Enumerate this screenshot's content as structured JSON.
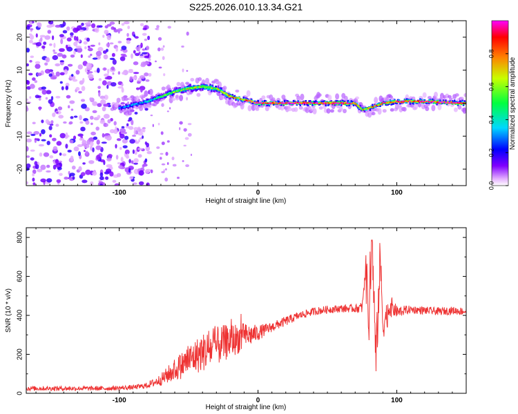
{
  "title": "S225.2026.010.13.34.G21",
  "chart_data": [
    {
      "type": "heatmap",
      "name": "spectrogram",
      "xlabel": "Height of straight line (km)",
      "ylabel": "Frequency (Hz)",
      "xlim": [
        -167,
        150
      ],
      "ylim": [
        -25,
        25
      ],
      "xticks": [
        -100,
        0,
        100
      ],
      "yticks": [
        -20,
        -10,
        0,
        10,
        20
      ],
      "colorbar": {
        "label": "Normalized spectral amplitude",
        "range": [
          0,
          1
        ],
        "ticks": [
          0.0,
          0.2,
          0.4,
          0.6,
          0.8
        ]
      },
      "ridge": {
        "x": [
          -100,
          -90,
          -80,
          -70,
          -60,
          -50,
          -40,
          -30,
          -20,
          -10,
          0,
          20,
          40,
          60,
          70,
          75,
          80,
          90,
          100,
          120,
          150
        ],
        "freq": [
          -1.5,
          -0.5,
          0.5,
          2,
          3.5,
          4.5,
          5,
          4.5,
          2,
          1,
          0,
          0,
          0,
          0,
          0,
          -2,
          -1.5,
          0,
          0.5,
          0.5,
          0
        ],
        "amplitude": [
          0.25,
          0.3,
          0.35,
          0.45,
          0.55,
          0.6,
          0.65,
          0.6,
          0.7,
          0.8,
          0.9,
          0.95,
          0.95,
          0.95,
          0.9,
          0.7,
          0.75,
          0.85,
          0.9,
          0.95,
          0.95
        ]
      },
      "noise_region_x": [
        -167,
        -78
      ]
    },
    {
      "type": "line",
      "name": "snr",
      "xlabel": "Height of straight line (km)",
      "ylabel": "SNR (10 * v/v)",
      "xlim": [
        -167,
        150
      ],
      "ylim": [
        0,
        850
      ],
      "xticks": [
        -100,
        0,
        100
      ],
      "yticks": [
        0,
        200,
        400,
        600,
        800
      ],
      "color": "#ee3333",
      "series": [
        {
          "name": "SNR",
          "x": [
            -167,
            -140,
            -110,
            -90,
            -80,
            -70,
            -60,
            -50,
            -40,
            -30,
            -20,
            -10,
            0,
            10,
            20,
            30,
            40,
            50,
            60,
            70,
            75,
            78,
            80,
            82,
            85,
            88,
            90,
            95,
            100,
            110,
            120,
            130,
            140,
            150
          ],
          "y": [
            25,
            25,
            25,
            30,
            40,
            70,
            120,
            170,
            210,
            240,
            270,
            290,
            310,
            340,
            370,
            400,
            420,
            430,
            435,
            435,
            440,
            700,
            300,
            820,
            150,
            700,
            350,
            450,
            420,
            430,
            425,
            420,
            425,
            420
          ],
          "noise": [
            12,
            12,
            12,
            12,
            15,
            30,
            60,
            80,
            100,
            100,
            90,
            70,
            40,
            25,
            25,
            20,
            20,
            20,
            20,
            20,
            30,
            60,
            90,
            120,
            140,
            120,
            80,
            60,
            30,
            20,
            20,
            20,
            20,
            20
          ]
        }
      ]
    }
  ]
}
